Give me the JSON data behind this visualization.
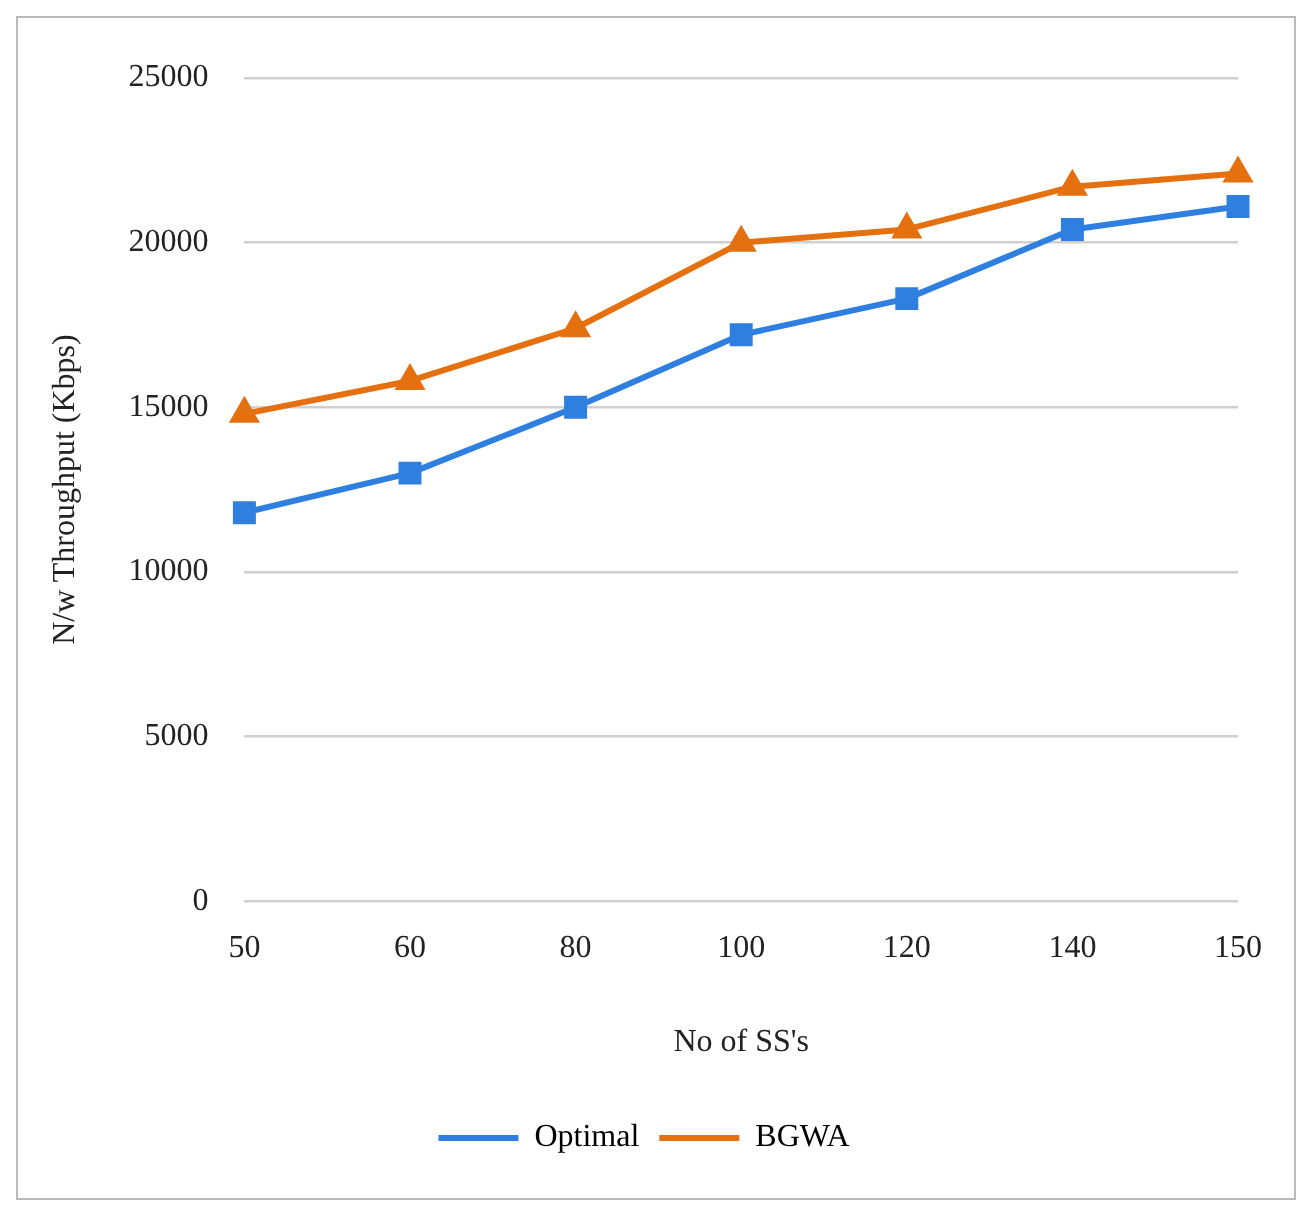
{
  "chart_data": {
    "type": "line",
    "xlabel": "No of SS's",
    "ylabel": "N/w Throughput (Kbps)",
    "categories": [
      "50",
      "60",
      "80",
      "100",
      "120",
      "140",
      "150"
    ],
    "series": [
      {
        "name": "Optimal",
        "color": "#2e7fe0",
        "marker": "square",
        "values": [
          11800,
          13000,
          15000,
          17200,
          18300,
          20400,
          21100
        ]
      },
      {
        "name": "BGWA",
        "color": "#e5700f",
        "marker": "triangle",
        "values": [
          14800,
          15800,
          17400,
          20000,
          20400,
          21700,
          22100
        ]
      }
    ],
    "ylim": [
      0,
      25000
    ],
    "yticks": [
      0,
      5000,
      10000,
      15000,
      20000,
      25000
    ],
    "grid": "y",
    "legend": "bottom",
    "line_style": "solid"
  }
}
